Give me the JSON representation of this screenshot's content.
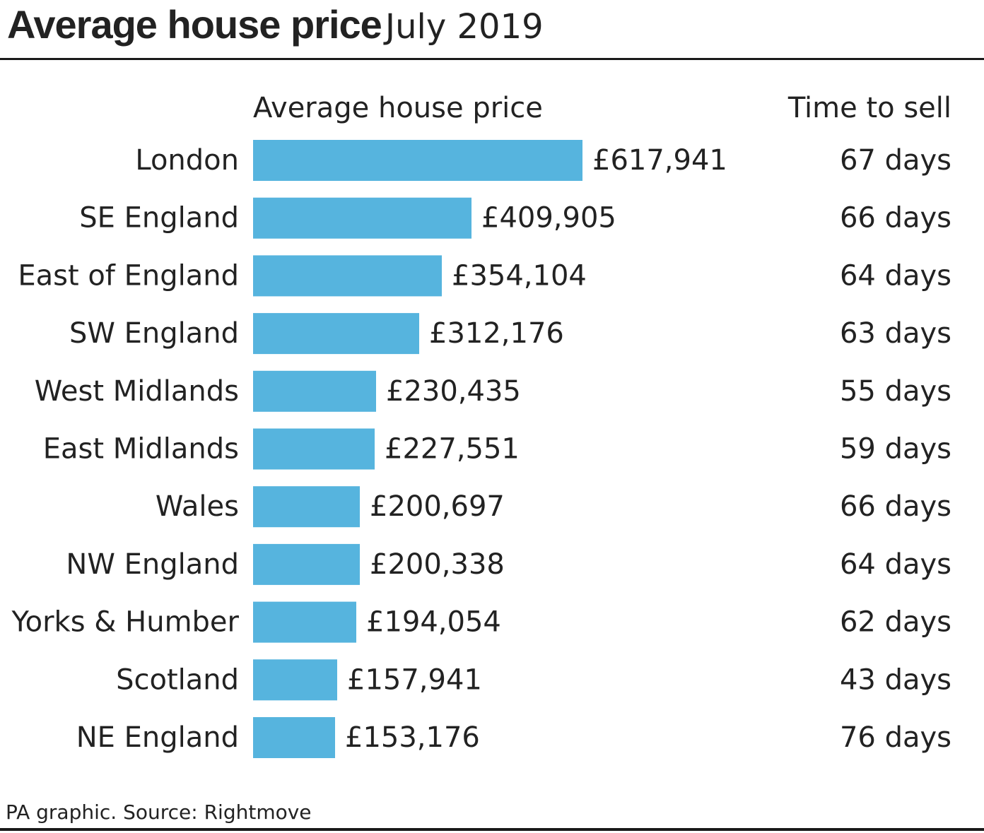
{
  "title": {
    "bold": "Average house price",
    "light": "July 2019"
  },
  "colors": {
    "bar": "#56B4DE",
    "text": "#222222",
    "rule": "#1A1A1A"
  },
  "chart_data": {
    "type": "bar",
    "orientation": "horizontal",
    "price_header": "Average house price",
    "time_header": "Time to sell",
    "categories": [
      "London",
      "SE England",
      "East of England",
      "SW England",
      "West Midlands",
      "East Midlands",
      "Wales",
      "NW England",
      "Yorks & Humber",
      "Scotland",
      "NE England"
    ],
    "values": [
      617941,
      409905,
      354104,
      312176,
      230435,
      227551,
      200697,
      200338,
      194054,
      157941,
      153176
    ],
    "value_labels": [
      "£617,941",
      "£409,905",
      "£354,104",
      "£312,176",
      "£230,435",
      "£227,551",
      "£200,697",
      "£200,338",
      "£194,054",
      "£157,941",
      "£153,176"
    ],
    "time_to_sell_days": [
      67,
      66,
      64,
      63,
      55,
      59,
      66,
      64,
      62,
      43,
      76
    ],
    "time_labels": [
      "67 days",
      "66 days",
      "64 days",
      "63 days",
      "55 days",
      "59 days",
      "66 days",
      "64 days",
      "62 days",
      "43 days",
      "76 days"
    ],
    "xlim": [
      0,
      617941
    ],
    "grid": false,
    "legend": "none"
  },
  "footer": {
    "source": "PA graphic. Source: Rightmove"
  }
}
